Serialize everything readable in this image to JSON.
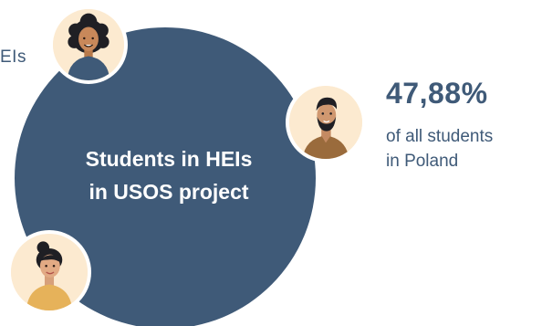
{
  "partial_label": "EIs",
  "circle": {
    "title_line1": "Students in HEIs",
    "title_line2": "in USOS project"
  },
  "stat": {
    "value": "47,88%",
    "desc_line1": "of all students",
    "desc_line2": "in Poland"
  },
  "colors": {
    "primary": "#3f5a78",
    "avatar_bg": "#fcead0",
    "shirt_blue": "#3f5a78",
    "shirt_brown": "#9a6b3c",
    "shirt_yellow": "#e6b25a"
  },
  "avatars": [
    {
      "icon": "woman-curly-hair-avatar-icon"
    },
    {
      "icon": "bearded-man-avatar-icon"
    },
    {
      "icon": "woman-bun-avatar-icon"
    }
  ]
}
